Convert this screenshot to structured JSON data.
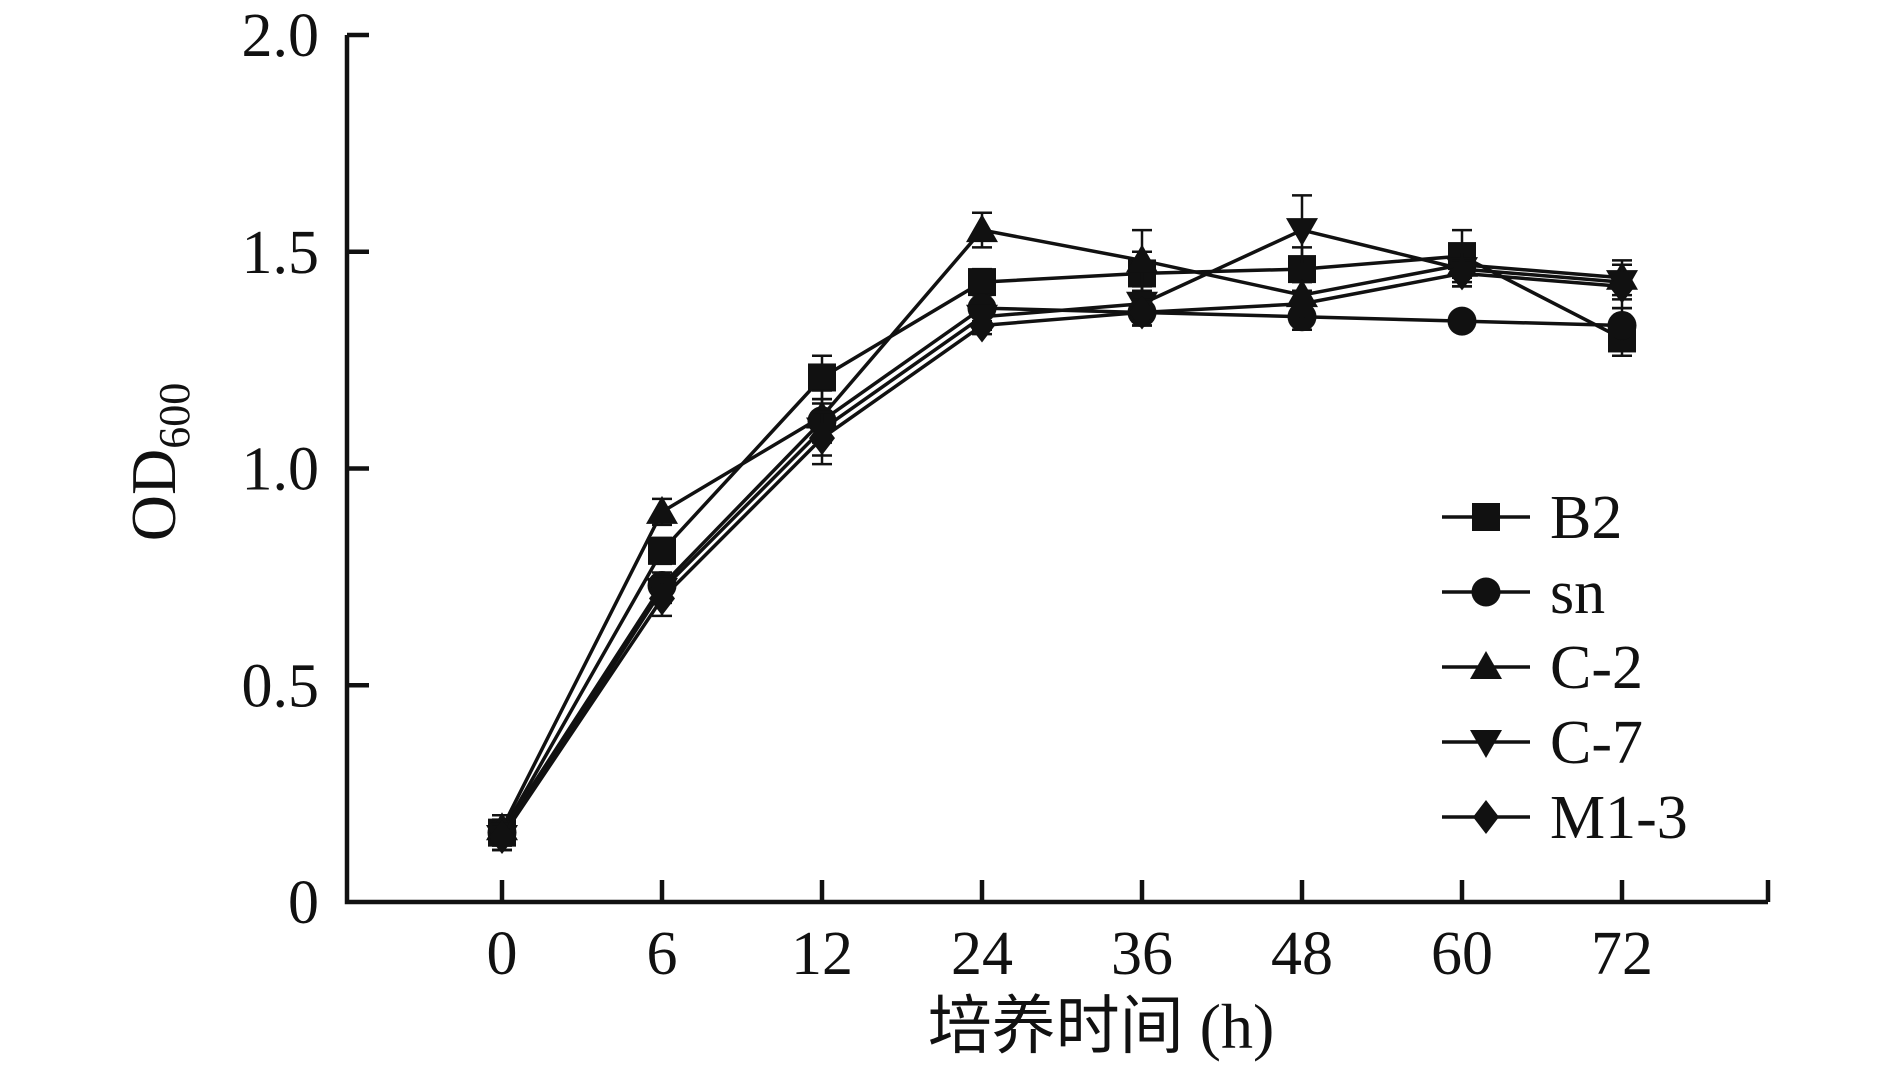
{
  "figure": {
    "background": "#ffffff",
    "ink_color": "#111111"
  },
  "chart_data": {
    "type": "line",
    "title": "",
    "xlabel": "培养时间 (h)",
    "ylabel": "OD",
    "ylabel_subscript": "600",
    "x_axis_categorical": true,
    "categories": [
      0,
      6,
      12,
      24,
      36,
      48,
      60,
      72
    ],
    "x_tick_labels": [
      "0",
      "6",
      "12",
      "24",
      "36",
      "48",
      "60",
      "72"
    ],
    "y_tick_labels": [
      "0",
      "0.5",
      "1.0",
      "1.5",
      "2.0"
    ],
    "y_tick_values": [
      0,
      0.5,
      1.0,
      1.5,
      2.0
    ],
    "ylim": [
      0,
      2.0
    ],
    "grid": false,
    "error_bars": true,
    "legend_position": "right-inside",
    "series": [
      {
        "name": "B2",
        "marker": "square",
        "color": "#111111",
        "values": [
          0.16,
          0.81,
          1.21,
          1.43,
          1.45,
          1.46,
          1.49,
          1.3
        ],
        "errors": [
          0.04,
          0.03,
          0.05,
          0.03,
          0.05,
          0.05,
          0.06,
          0.04
        ]
      },
      {
        "name": "sn",
        "marker": "circle",
        "color": "#111111",
        "values": [
          0.16,
          0.73,
          1.11,
          1.37,
          1.36,
          1.35,
          1.34,
          1.33
        ],
        "errors": [
          0.03,
          0.03,
          0.05,
          0.03,
          0.03,
          0.03,
          0.02,
          0.04
        ]
      },
      {
        "name": "C-2",
        "marker": "triangle-up",
        "color": "#111111",
        "values": [
          0.17,
          0.9,
          1.12,
          1.55,
          1.48,
          1.4,
          1.47,
          1.44
        ],
        "errors": [
          0.03,
          0.03,
          0.06,
          0.04,
          0.07,
          0.03,
          0.03,
          0.04
        ]
      },
      {
        "name": "C-7",
        "marker": "triangle-down",
        "color": "#111111",
        "values": [
          0.15,
          0.72,
          1.09,
          1.35,
          1.38,
          1.55,
          1.46,
          1.43
        ],
        "errors": [
          0.03,
          0.03,
          0.06,
          0.03,
          0.04,
          0.08,
          0.04,
          0.04
        ]
      },
      {
        "name": "M1-3",
        "marker": "diamond",
        "color": "#111111",
        "values": [
          0.15,
          0.7,
          1.07,
          1.33,
          1.36,
          1.38,
          1.45,
          1.42
        ],
        "errors": [
          0.03,
          0.04,
          0.06,
          0.02,
          0.03,
          0.03,
          0.03,
          0.05
        ]
      }
    ]
  }
}
